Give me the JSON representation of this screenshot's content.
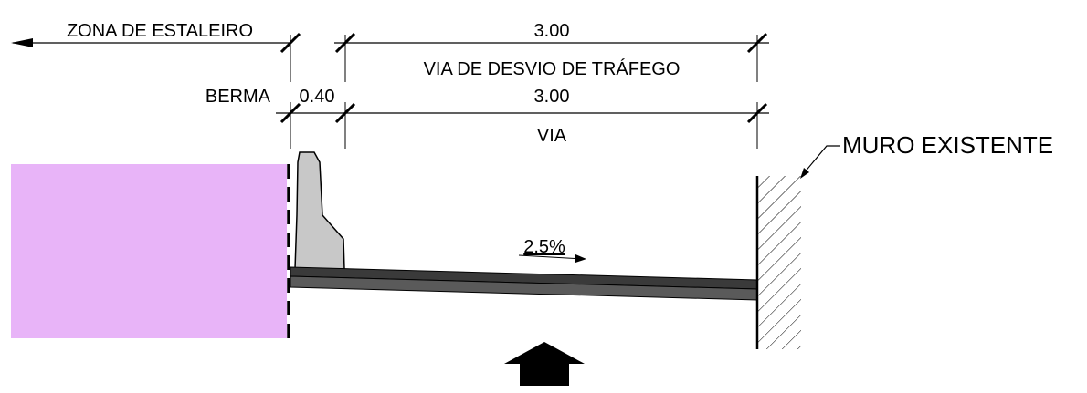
{
  "labels": {
    "zona_estaleiro": "ZONA DE ESTALEIRO",
    "dim_top": "3.00",
    "via_desvio": "VIA DE DESVIO DE TRÁFEGO",
    "berma": "BERMA",
    "dim_berma": "0.40",
    "dim_via": "3.00",
    "via": "VIA",
    "muro": "MURO EXISTENTE",
    "slope": "2.5%"
  },
  "colors": {
    "construction_zone": "#e8b4f8",
    "barrier": "#c8c8c8",
    "pavement_top": "#3a3a3a",
    "pavement_bottom": "#5a5a5a",
    "line": "#000000"
  },
  "icons": {
    "view_arrow": "up-arrow-icon",
    "barrier": "new-jersey-barrier-icon",
    "wall_hatch": "wall-hatch-icon"
  }
}
